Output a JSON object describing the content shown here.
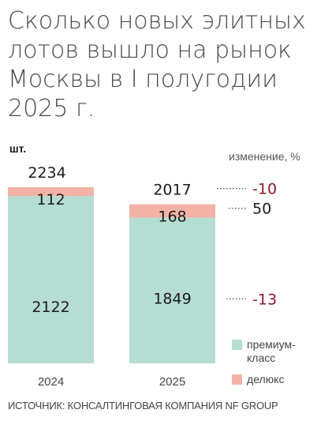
{
  "title_lines": [
    "Сколько новых элитных",
    "лотов вышло на рынок",
    "Москвы в I полугодии",
    "2025 г."
  ],
  "unit": "шт.",
  "change_header": "изменение, %",
  "source": "ИСТОЧНИК: КОНСАЛТИНГОВАЯ КОМПАНИЯ NF GROUP",
  "colors": {
    "premium": "#b5ddd3",
    "deluxe": "#f2b2a6",
    "negative": "#8b1a2b",
    "positive": "#1a1a1a",
    "dots": "#555555"
  },
  "chart_data": {
    "type": "bar",
    "stacked": true,
    "categories": [
      "2024",
      "2025"
    ],
    "series": [
      {
        "name": "премиум-класс",
        "values": [
          2122,
          1849
        ]
      },
      {
        "name": "делюкс",
        "values": [
          112,
          168
        ]
      }
    ],
    "totals": [
      2234,
      2017
    ],
    "changes": {
      "total": "-10",
      "deluxe": "50",
      "premium": "-13"
    },
    "legend": [
      "премиум-",
      "класс",
      "делюкс"
    ],
    "legend_position": "bottom-right",
    "grid": false
  }
}
